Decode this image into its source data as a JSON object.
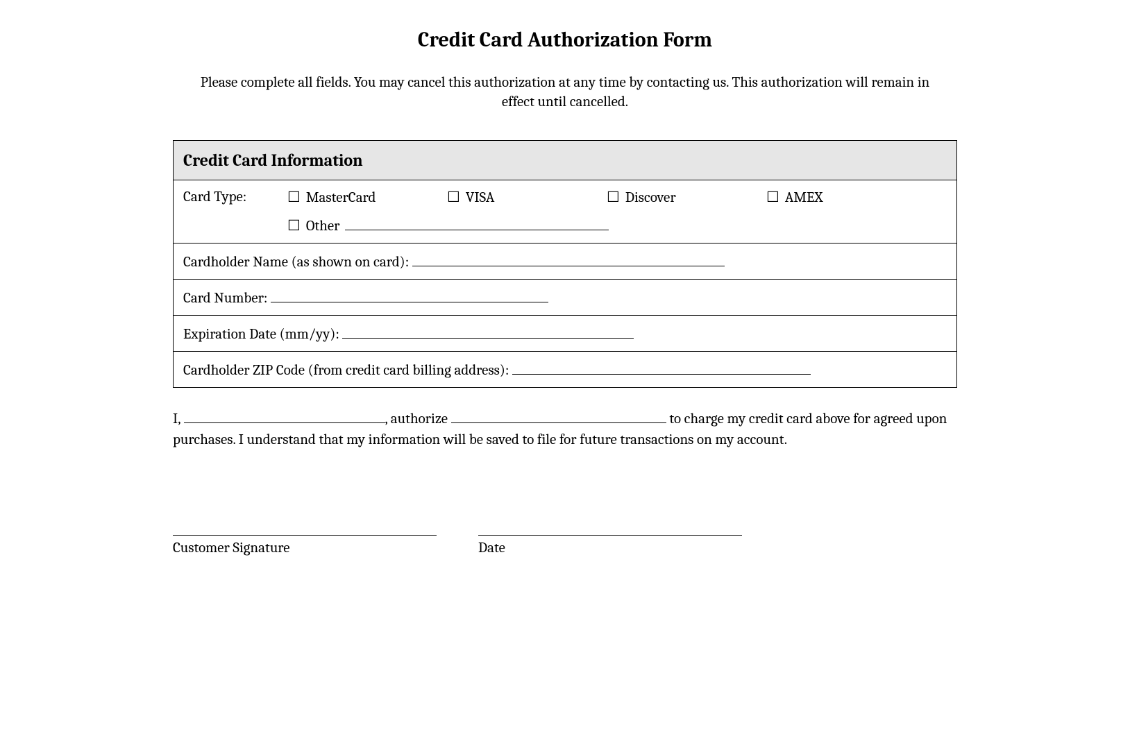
{
  "title": "Credit Card Authorization Form",
  "intro": "Please complete all fields. You may cancel this authorization at any time by contacting us. This authorization will remain in effect until cancelled.",
  "section_header": "Credit Card Information",
  "card_type": {
    "label": "Card Type:",
    "options": [
      "MasterCard",
      "VISA",
      "Discover",
      "AMEX"
    ],
    "other_label": "Other"
  },
  "fields": {
    "cardholder_name": "Cardholder Name (as shown on card):",
    "card_number": "Card Number:",
    "expiration": "Expiration Date (mm/yy):",
    "zip": "Cardholder ZIP Code (from credit card billing address):"
  },
  "underline_widths": {
    "cardholder_name": 450,
    "card_number": 400,
    "expiration": 420,
    "zip": 430
  },
  "authorization": {
    "prefix": "I,",
    "mid1": ", authorize",
    "mid2": "to charge my credit card above for agreed upon purchases. I understand that my information will be saved to file for future transactions on my account."
  },
  "signature": {
    "customer": "Customer Signature",
    "date": "Date"
  },
  "checkbox_glyph": "☐"
}
